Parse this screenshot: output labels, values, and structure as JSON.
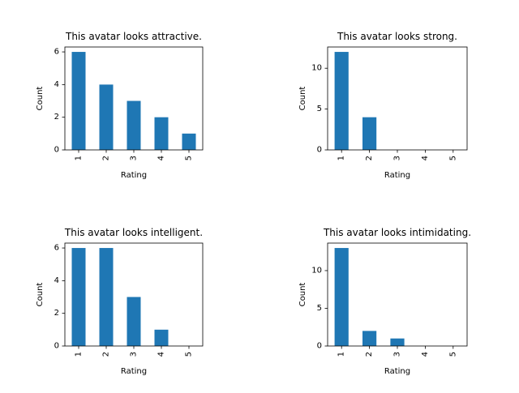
{
  "chart_data": [
    {
      "type": "bar",
      "title": "This avatar looks attractive.",
      "xlabel": "Rating",
      "ylabel": "Count",
      "categories": [
        "1",
        "2",
        "3",
        "4",
        "5"
      ],
      "values": [
        6,
        4,
        3,
        2,
        1
      ],
      "ylim": [
        0,
        6.3
      ],
      "yticks": [
        0,
        2,
        4,
        6
      ],
      "color": "#1f77b4"
    },
    {
      "type": "bar",
      "title": "This avatar looks strong.",
      "xlabel": "Rating",
      "ylabel": "Count",
      "categories": [
        "1",
        "2",
        "3",
        "4",
        "5"
      ],
      "values": [
        12,
        4,
        0,
        0,
        0
      ],
      "ylim": [
        0,
        12.6
      ],
      "yticks": [
        0,
        5,
        10
      ],
      "color": "#1f77b4"
    },
    {
      "type": "bar",
      "title": "This avatar looks intelligent.",
      "xlabel": "Rating",
      "ylabel": "Count",
      "categories": [
        "1",
        "2",
        "3",
        "4",
        "5"
      ],
      "values": [
        6,
        6,
        3,
        1,
        0
      ],
      "ylim": [
        0,
        6.3
      ],
      "yticks": [
        0,
        2,
        4,
        6
      ],
      "color": "#1f77b4"
    },
    {
      "type": "bar",
      "title": "This avatar looks intimidating.",
      "xlabel": "Rating",
      "ylabel": "Count",
      "categories": [
        "1",
        "2",
        "3",
        "4",
        "5"
      ],
      "values": [
        13,
        2,
        1,
        0,
        0
      ],
      "ylim": [
        0,
        13.65
      ],
      "yticks": [
        0,
        5,
        10
      ],
      "color": "#1f77b4"
    }
  ]
}
